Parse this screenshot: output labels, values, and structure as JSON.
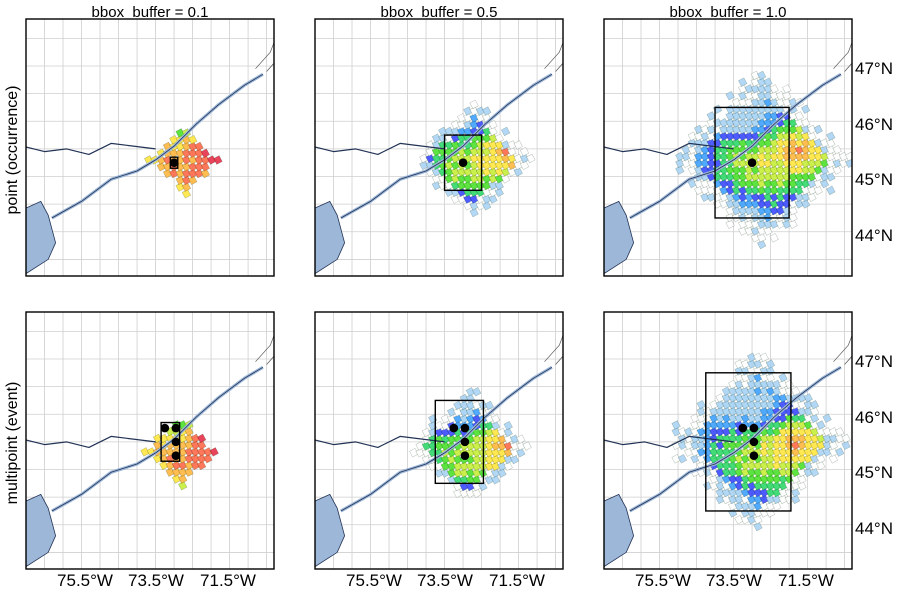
{
  "chart_data": {
    "type": "heatmap",
    "column_titles": [
      "bbox_buffer = 0.1",
      "bbox_buffer = 0.5",
      "bbox_buffer = 1.0"
    ],
    "row_labels": [
      "point (occurrence)",
      "multipoint (event)"
    ],
    "x_ticks": [
      "75.5°W",
      "73.5°W",
      "71.5°W"
    ],
    "x_tick_values": [
      -75.5,
      -73.5,
      -71.5
    ],
    "y_ticks": [
      "47°N",
      "46°N",
      "45°N",
      "44°N"
    ],
    "y_tick_values": [
      47,
      46,
      45,
      44
    ],
    "xlim": [
      -77.5,
      -70.8
    ],
    "ylim": [
      43.2,
      47.85
    ],
    "grid": true,
    "buffers": [
      0.1,
      0.5,
      1.0
    ],
    "points": {
      "occurrence": [
        [
          -73.5,
          45.25
        ]
      ],
      "event": [
        [
          -73.75,
          45.75
        ],
        [
          -73.45,
          45.75
        ],
        [
          -73.45,
          45.5
        ],
        [
          -73.45,
          45.25
        ]
      ]
    },
    "bboxes": {
      "occurrence": [
        [
          -73.6,
          -73.4,
          45.15,
          45.35
        ],
        [
          -74.0,
          -73.0,
          44.75,
          45.75
        ],
        [
          -74.5,
          -72.5,
          44.25,
          46.25
        ]
      ],
      "event": [
        [
          -73.85,
          -73.35,
          45.15,
          45.85
        ],
        [
          -74.25,
          -72.95,
          44.75,
          46.25
        ],
        [
          -74.75,
          -72.45,
          44.25,
          46.75
        ]
      ]
    },
    "colormap": [
      "#ffffff",
      "#a6d2f5",
      "#3fa1ff",
      "#3b4bff",
      "#2fd96a",
      "#4de22d",
      "#c6ee3a",
      "#ffe640",
      "#ffb640",
      "#ff6a4a",
      "#e6304a"
    ],
    "land_color": "#ffffff",
    "water_color": "#9db7d9",
    "coast_color": "#223355"
  }
}
